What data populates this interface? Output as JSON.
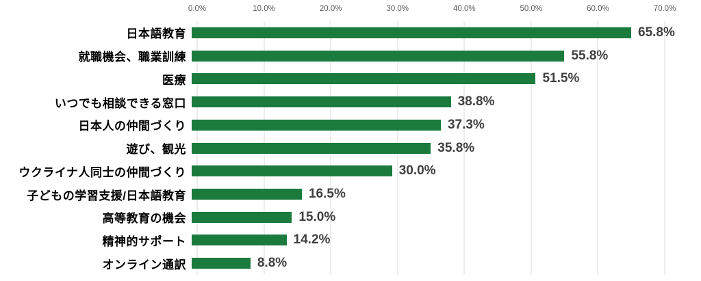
{
  "chart_data": {
    "type": "bar",
    "orientation": "horizontal",
    "title": "",
    "xlabel": "",
    "ylabel": "",
    "axis": {
      "min": 0,
      "max": 70,
      "tick_step": 10,
      "tick_labels": [
        "0.0%",
        "10.0%",
        "20.0%",
        "30.0%",
        "40.0%",
        "50.0%",
        "60.0%",
        "70.0%"
      ],
      "tick_position": "top",
      "grid": true
    },
    "categories": [
      "日本語教育",
      "就職機会、職業訓練",
      "医療",
      "いつでも相談できる窓口",
      "日本人の仲間づくり",
      "遊び、観光",
      "ウクライナ人同士の仲間づくり",
      "子どもの学習支援/日本語教育",
      "高等教育の機会",
      "精神的サポート",
      "オンライン通訳"
    ],
    "values": [
      65.8,
      55.8,
      51.5,
      38.8,
      37.3,
      35.8,
      30.0,
      16.5,
      15.0,
      14.2,
      8.8
    ],
    "value_labels": [
      "65.8%",
      "55.8%",
      "51.5%",
      "38.8%",
      "37.3%",
      "35.8%",
      "30.0%",
      "16.5%",
      "15.0%",
      "14.2%",
      "8.8%"
    ],
    "colors": {
      "bar": "#1a7b3d",
      "grid": "#d9d9d9",
      "category_label": "#000000",
      "value_label": "#3f3f3f",
      "tick_label": "#595959",
      "background": "#ffffff"
    },
    "legend": null
  }
}
